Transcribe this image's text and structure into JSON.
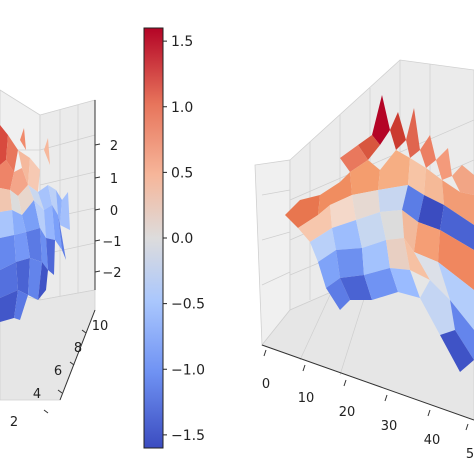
{
  "chart_data": [
    {
      "type": "surface3d",
      "panel": "left",
      "colormap": "coolwarm",
      "view_cropped": "left",
      "xlim": [
        0,
        10
      ],
      "ylim": [
        0,
        10
      ],
      "zlim": [
        -2.5,
        2.5
      ],
      "y_tick_labels": [
        "2",
        "4",
        "6",
        "8",
        "10"
      ],
      "z_tick_labels": [
        "2",
        "1",
        "0",
        "−1",
        "−2"
      ],
      "surface_note": "noisy random surface, red peaks near back-left, blue troughs near front"
    },
    {
      "type": "colorbar",
      "colormap": "coolwarm",
      "range": [
        -1.6,
        1.6
      ],
      "tick_labels": [
        "1.5",
        "1.0",
        "0.5",
        "0.0",
        "−0.5",
        "−1.0",
        "−1.5"
      ],
      "tick_values": [
        1.5,
        1.0,
        0.5,
        0.0,
        -0.5,
        -1.0,
        -1.5
      ],
      "colors": {
        "top": "#b40426",
        "middle": "#dddddd",
        "bottom": "#3b4cc0"
      }
    },
    {
      "type": "surface3d",
      "panel": "right",
      "colormap": "coolwarm",
      "view_cropped": "right",
      "xlim": [
        0,
        50
      ],
      "x_tick_labels": [
        "0",
        "10",
        "20",
        "30",
        "40",
        "5"
      ],
      "surface_note": "orange ridges with dark-red peaks at back, blue valleys in front"
    }
  ]
}
